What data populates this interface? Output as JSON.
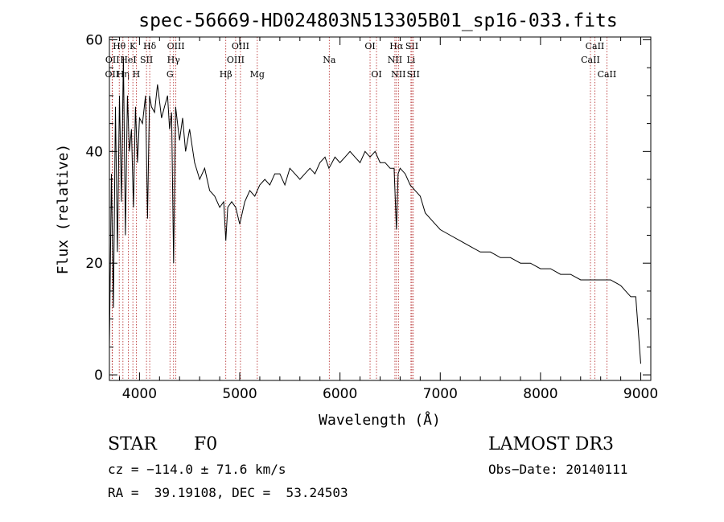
{
  "chart_data": {
    "type": "line",
    "title": "spec-56669-HD024803N513305B01_sp16-033.fits",
    "xlabel": "Wavelength (Å)",
    "ylabel": "Flux (relative)",
    "xlim": [
      3700,
      9100
    ],
    "ylim": [
      -1,
      60.5
    ],
    "x_ticks": [
      4000,
      5000,
      6000,
      7000,
      8000,
      9000
    ],
    "y_ticks": [
      0,
      20,
      40,
      60
    ],
    "series": [
      {
        "name": "flux",
        "x": [
          3700,
          3720,
          3740,
          3760,
          3780,
          3800,
          3820,
          3840,
          3860,
          3880,
          3900,
          3920,
          3940,
          3960,
          3980,
          4000,
          4030,
          4060,
          4080,
          4100,
          4120,
          4150,
          4180,
          4200,
          4220,
          4250,
          4280,
          4300,
          4320,
          4340,
          4360,
          4380,
          4400,
          4430,
          4460,
          4500,
          4550,
          4600,
          4650,
          4700,
          4750,
          4800,
          4840,
          4861,
          4880,
          4920,
          4960,
          5000,
          5050,
          5100,
          5150,
          5200,
          5250,
          5300,
          5350,
          5400,
          5450,
          5500,
          5550,
          5600,
          5650,
          5700,
          5750,
          5800,
          5850,
          5890,
          5920,
          5950,
          6000,
          6050,
          6100,
          6150,
          6200,
          6250,
          6300,
          6350,
          6400,
          6450,
          6500,
          6540,
          6563,
          6580,
          6600,
          6650,
          6700,
          6750,
          6800,
          6850,
          6900,
          6950,
          7000,
          7100,
          7200,
          7300,
          7400,
          7500,
          7600,
          7700,
          7800,
          7900,
          8000,
          8100,
          8200,
          8300,
          8400,
          8500,
          8600,
          8700,
          8800,
          8850,
          8900,
          8950,
          9000
        ],
        "y": [
          5,
          36,
          12,
          48,
          22,
          50,
          31,
          57,
          25,
          50,
          40,
          44,
          30,
          48,
          38,
          46,
          45,
          50,
          28,
          50,
          48,
          47,
          52,
          49,
          46,
          48,
          50,
          44,
          47,
          20,
          48,
          45,
          42,
          46,
          40,
          44,
          38,
          35,
          37,
          33,
          32,
          30,
          31,
          24,
          30,
          31,
          30,
          27,
          31,
          33,
          32,
          34,
          35,
          34,
          36,
          36,
          34,
          37,
          36,
          35,
          36,
          37,
          36,
          38,
          39,
          37,
          38,
          39,
          38,
          39,
          40,
          39,
          38,
          40,
          39,
          40,
          38,
          38,
          37,
          37,
          26,
          36,
          37,
          36,
          34,
          33,
          32,
          29,
          28,
          27,
          26,
          25,
          24,
          23,
          22,
          22,
          21,
          21,
          20,
          20,
          19,
          19,
          18,
          18,
          17,
          17,
          17,
          17,
          16,
          15,
          14,
          14,
          2
        ]
      }
    ],
    "line_markers": [
      {
        "label": "OII",
        "x": 3727,
        "row": 3
      },
      {
        "label": "Hθ",
        "x": 3798,
        "row": 1
      },
      {
        "label": "OII",
        "x": 3730,
        "row": 2
      },
      {
        "label": "Hη",
        "x": 3835,
        "row": 3
      },
      {
        "label": "HeI",
        "x": 3889,
        "row": 2
      },
      {
        "label": "K",
        "x": 3934,
        "row": 1
      },
      {
        "label": "H",
        "x": 3968,
        "row": 3
      },
      {
        "label": "Hδ",
        "x": 4102,
        "row": 1
      },
      {
        "label": "SII",
        "x": 4070,
        "row": 2
      },
      {
        "label": "OIII",
        "x": 4363,
        "row": 1
      },
      {
        "label": "Hγ",
        "x": 4340,
        "row": 2
      },
      {
        "label": "G",
        "x": 4304,
        "row": 3
      },
      {
        "label": "Hβ",
        "x": 4861,
        "row": 3
      },
      {
        "label": "OIII",
        "x": 5007,
        "row": 1
      },
      {
        "label": "OIII",
        "x": 4959,
        "row": 2
      },
      {
        "label": "Mg",
        "x": 5175,
        "row": 3
      },
      {
        "label": "Na",
        "x": 5893,
        "row": 2
      },
      {
        "label": "OI",
        "x": 6300,
        "row": 1
      },
      {
        "label": "OI",
        "x": 6364,
        "row": 3
      },
      {
        "label": "Hα",
        "x": 6563,
        "row": 1
      },
      {
        "label": "NII",
        "x": 6548,
        "row": 2
      },
      {
        "label": "NII",
        "x": 6583,
        "row": 3
      },
      {
        "label": "SII",
        "x": 6717,
        "row": 1
      },
      {
        "label": "Li",
        "x": 6708,
        "row": 2
      },
      {
        "label": "SII",
        "x": 6731,
        "row": 3
      },
      {
        "label": "CaII",
        "x": 8542,
        "row": 1
      },
      {
        "label": "CaII",
        "x": 8498,
        "row": 2
      },
      {
        "label": "CaII",
        "x": 8662,
        "row": 3
      }
    ]
  },
  "info": {
    "object_class": "STAR",
    "subclass": "F0",
    "survey": "LAMOST DR3",
    "cz": "cz = −114.0 ± 71.6 km/s",
    "obs_date": "Obs−Date: 20140111",
    "coords": "RA =  39.19108, DEC =  53.24503"
  },
  "colors": {
    "line": "#000000",
    "marker": "#b22222"
  }
}
